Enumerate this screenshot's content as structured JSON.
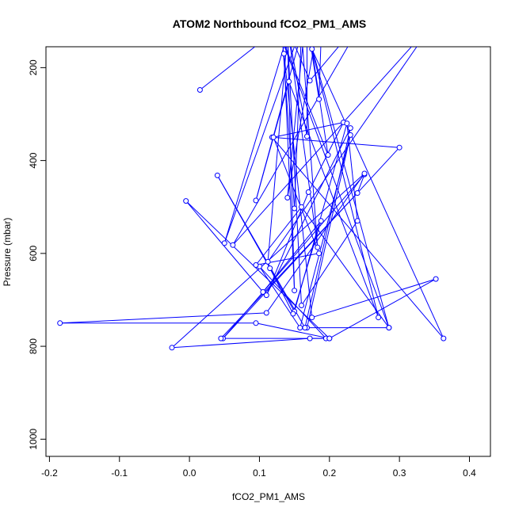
{
  "chart_data": {
    "type": "line",
    "title": "ATOM2 Northbound fCO2_PM1_AMS",
    "xlabel": "fCO2_PM1_AMS",
    "ylabel": "Pressure (mbar)",
    "xlim": [
      -0.205,
      0.43
    ],
    "ylim": [
      1037,
      155
    ],
    "y_reversed": true,
    "x_ticks": [
      -0.2,
      -0.1,
      0.0,
      0.1,
      0.2,
      0.3,
      0.4
    ],
    "x_tick_labels": [
      "-0.2",
      "-0.1",
      "0.0",
      "0.1",
      "0.2",
      "0.3",
      "0.4"
    ],
    "y_ticks": [
      200,
      400,
      600,
      800,
      1000
    ],
    "y_tick_labels": [
      "200",
      "400",
      "600",
      "800",
      "1000"
    ],
    "grid": false,
    "series_color": "#0000ff",
    "series": [
      {
        "points": [
          [
            0.015,
            248
          ],
          [
            0.165,
            70
          ],
          [
            0.185,
            268
          ],
          [
            0.19,
            50
          ],
          [
            0.14,
            480
          ],
          [
            0.168,
            60
          ],
          [
            0.168,
            348
          ],
          [
            0.14,
            110
          ],
          [
            0.183,
            587
          ],
          [
            0.16,
            120
          ],
          [
            0.15,
            503
          ],
          [
            0.13,
            80
          ],
          [
            0.172,
            228
          ],
          [
            0.255,
            80
          ],
          [
            0.062,
            582
          ],
          [
            0.35,
            100
          ],
          [
            0.112,
            618
          ],
          [
            0.14,
            130
          ],
          [
            0.05,
            578
          ],
          [
            0.17,
            70
          ],
          [
            0.095,
            486
          ],
          [
            0.142,
            230
          ],
          [
            0.27,
            738
          ],
          [
            0.17,
            130
          ],
          [
            0.285,
            760
          ],
          [
            0.12,
            90
          ],
          [
            0.198,
            388
          ],
          [
            0.175,
            160
          ],
          [
            0.363,
            783
          ],
          [
            0.118,
            350
          ],
          [
            0.3,
            372
          ],
          [
            0.048,
            783
          ],
          [
            0.25,
            430
          ],
          [
            0.24,
            470
          ],
          [
            0.045,
            783
          ],
          [
            0.195,
            783
          ],
          [
            0.1,
            628
          ],
          [
            0.158,
            760
          ],
          [
            0.23,
            345
          ],
          [
            0.168,
            760
          ],
          [
            0.285,
            760
          ],
          [
            0.16,
            500
          ],
          [
            0.095,
            625
          ],
          [
            0.185,
            600
          ],
          [
            0.12,
            350
          ],
          [
            0.22,
            318
          ],
          [
            0.17,
            468
          ],
          [
            0.11,
            690
          ],
          [
            0.23,
            330
          ],
          [
            0.165,
            760
          ],
          [
            0.04,
            432
          ],
          [
            0.15,
            725
          ],
          [
            0.225,
            320
          ],
          [
            0.24,
            530
          ],
          [
            0.16,
            712
          ],
          [
            0.14,
            130
          ],
          [
            0.15,
            680
          ],
          [
            0.135,
            170
          ],
          [
            0.175,
            738
          ],
          [
            0.352,
            655
          ],
          [
            0.2,
            783
          ],
          [
            0.172,
            783
          ],
          [
            -0.025,
            803
          ],
          [
            0.25,
            428
          ],
          [
            0.11,
            728
          ],
          [
            -0.185,
            750
          ],
          [
            0.095,
            750
          ],
          [
            0.2,
            783
          ],
          [
            -0.005,
            487
          ],
          [
            0.105,
            683
          ],
          [
            0.188,
            530
          ],
          [
            0.148,
            730
          ],
          [
            0.115,
            632
          ]
        ]
      }
    ]
  }
}
